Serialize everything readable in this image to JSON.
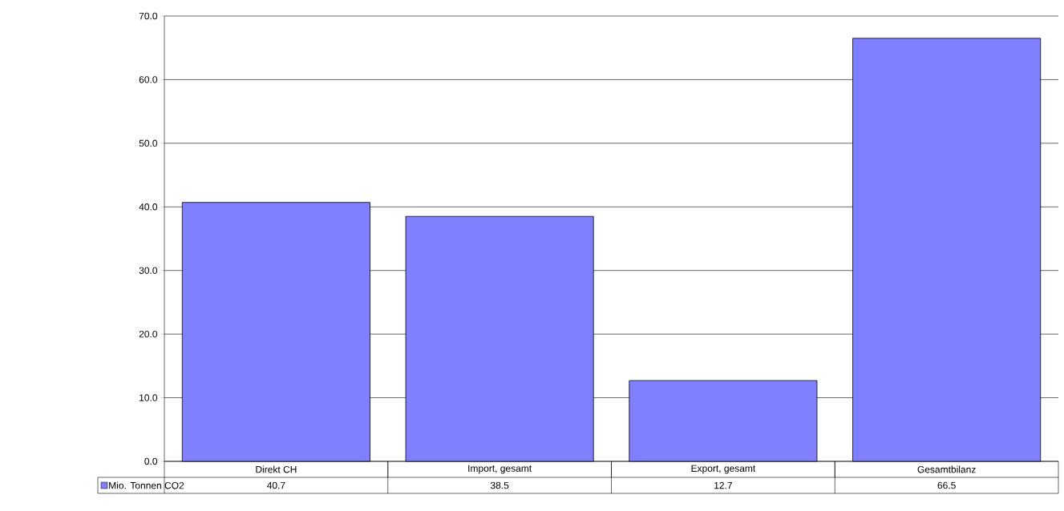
{
  "chart_data": {
    "type": "bar",
    "categories": [
      "Direkt CH",
      "Import, gesamt",
      "Export, gesamt",
      "Gesamtbilanz"
    ],
    "series": [
      {
        "name": "Mio. Tonnen CO2",
        "color": "#8080ff",
        "values": [
          40.7,
          38.5,
          12.7,
          66.5
        ]
      }
    ],
    "ylim": [
      0,
      70
    ],
    "yticks": [
      {
        "value": 0,
        "label": "0.0"
      },
      {
        "value": 10,
        "label": "10.0"
      },
      {
        "value": 20,
        "label": "20.0"
      },
      {
        "value": 30,
        "label": "30.0"
      },
      {
        "value": 40,
        "label": "40.0"
      },
      {
        "value": 50,
        "label": "50.0"
      },
      {
        "value": 60,
        "label": "60.0"
      },
      {
        "value": 70,
        "label": "70.0"
      }
    ],
    "grid": "y",
    "legend": "bottom",
    "data_labels": true
  }
}
